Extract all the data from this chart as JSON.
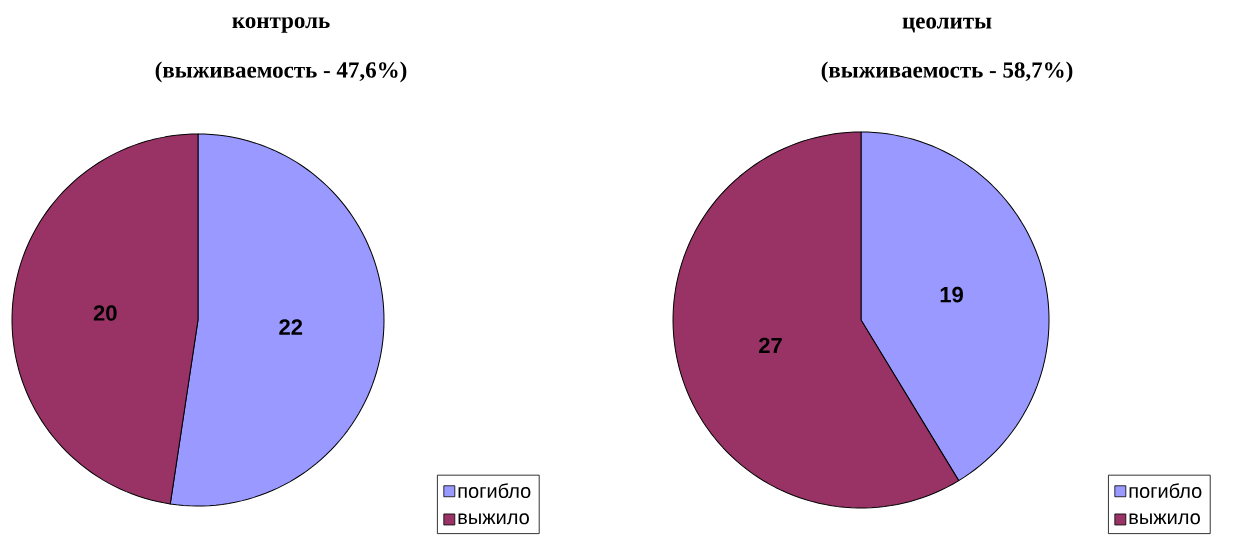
{
  "chart_data": [
    {
      "type": "pie",
      "title": "контроль",
      "subtitle": "(выживаемость - 47,6%)",
      "categories": [
        "погибло",
        "выжило"
      ],
      "values": [
        22,
        20
      ],
      "colors": [
        "#9999ff",
        "#993366"
      ],
      "legend": "bottom right",
      "data_labels": true
    },
    {
      "type": "pie",
      "title": "цеолиты",
      "subtitle": "(выживаемость - 58,7%)",
      "categories": [
        "погибло",
        "выжило"
      ],
      "values": [
        19,
        27
      ],
      "colors": [
        "#9999ff",
        "#993366"
      ],
      "legend": "bottom right",
      "data_labels": true
    }
  ]
}
